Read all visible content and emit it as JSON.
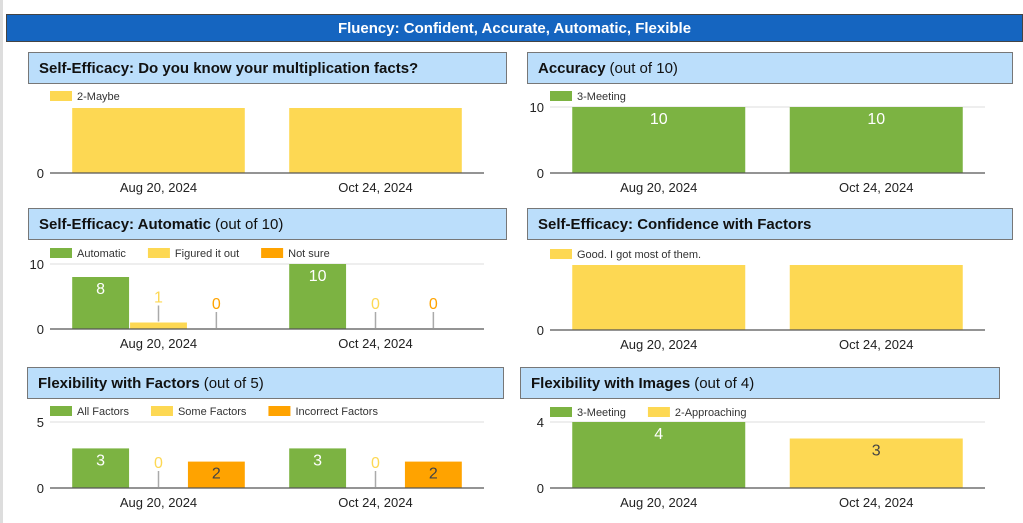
{
  "header": {
    "title": "Fluency: Confident, Accurate, Automatic, Flexible"
  },
  "colors": {
    "header": "#1565c0",
    "title_bg": "#bbdefb",
    "green": "#7cb342",
    "yellow": "#fdd853",
    "orange": "#ffa300"
  },
  "chart_data": [
    {
      "type": "bar",
      "title_bold": "Self-Efficacy: Do you know your multiplication facts?",
      "title_rest": "",
      "categories": [
        "Aug 20, 2024",
        "Oct 24, 2024"
      ],
      "series": [
        {
          "name": "2-Maybe",
          "color": "#fdd853",
          "values": [
            1,
            1
          ]
        }
      ],
      "ylim": [
        0,
        1
      ],
      "yticks": [
        "0"
      ],
      "data_labels": false,
      "legend": "top-left",
      "grid": false
    },
    {
      "type": "bar",
      "title_bold": "Accuracy",
      "title_rest": "(out of 10)",
      "categories": [
        "Aug 20, 2024",
        "Oct 24, 2024"
      ],
      "series": [
        {
          "name": "3-Meeting",
          "color": "#7cb342",
          "values": [
            10,
            10
          ]
        }
      ],
      "ylim": [
        0,
        10
      ],
      "yticks": [
        "0",
        "10"
      ],
      "data_labels": true,
      "legend": "top-left",
      "grid": true
    },
    {
      "type": "bar",
      "title_bold": "Self-Efficacy: Automatic",
      "title_rest": "(out of 10)",
      "categories": [
        "Aug 20, 2024",
        "Oct 24, 2024"
      ],
      "series": [
        {
          "name": "Automatic",
          "color": "#7cb342",
          "values": [
            8,
            10
          ]
        },
        {
          "name": "Figured it out",
          "color": "#fdd853",
          "values": [
            1,
            0
          ]
        },
        {
          "name": "Not sure",
          "color": "#ffa300",
          "values": [
            0,
            0
          ]
        }
      ],
      "ylim": [
        0,
        10
      ],
      "yticks": [
        "0",
        "10"
      ],
      "data_labels": true,
      "legend": "top-left",
      "grid": true
    },
    {
      "type": "bar",
      "title_bold": "Self-Efficacy: Confidence with Factors",
      "title_rest": "",
      "categories": [
        "Aug 20, 2024",
        "Oct 24, 2024"
      ],
      "series": [
        {
          "name": "Good. I got most of them.",
          "color": "#fdd853",
          "values": [
            1,
            1
          ]
        }
      ],
      "ylim": [
        0,
        1
      ],
      "yticks": [
        "0"
      ],
      "data_labels": false,
      "legend": "top-left",
      "grid": false
    },
    {
      "type": "bar",
      "title_bold": "Flexibility with Factors",
      "title_rest": "(out of 5)",
      "categories": [
        "Aug 20, 2024",
        "Oct 24, 2024"
      ],
      "series": [
        {
          "name": "All Factors",
          "color": "#7cb342",
          "values": [
            3,
            3
          ]
        },
        {
          "name": "Some Factors",
          "color": "#fdd853",
          "values": [
            0,
            0
          ]
        },
        {
          "name": "Incorrect Factors",
          "color": "#ffa300",
          "values": [
            2,
            2
          ]
        }
      ],
      "ylim": [
        0,
        5
      ],
      "yticks": [
        "0",
        "5"
      ],
      "data_labels": true,
      "legend": "top-left",
      "grid": true
    },
    {
      "type": "bar",
      "title_bold": "Flexibility with Images",
      "title_rest": "(out of 4)",
      "categories": [
        "Aug 20, 2024",
        "Oct 24, 2024"
      ],
      "series": [
        {
          "name": "3-Meeting",
          "color": "#7cb342",
          "values": [
            4,
            0
          ]
        },
        {
          "name": "2-Approaching",
          "color": "#fdd853",
          "values": [
            0,
            3
          ]
        }
      ],
      "stacked": true,
      "ylim": [
        0,
        4
      ],
      "yticks": [
        "0",
        "4"
      ],
      "data_labels": true,
      "legend": "top-left",
      "grid": true
    }
  ]
}
